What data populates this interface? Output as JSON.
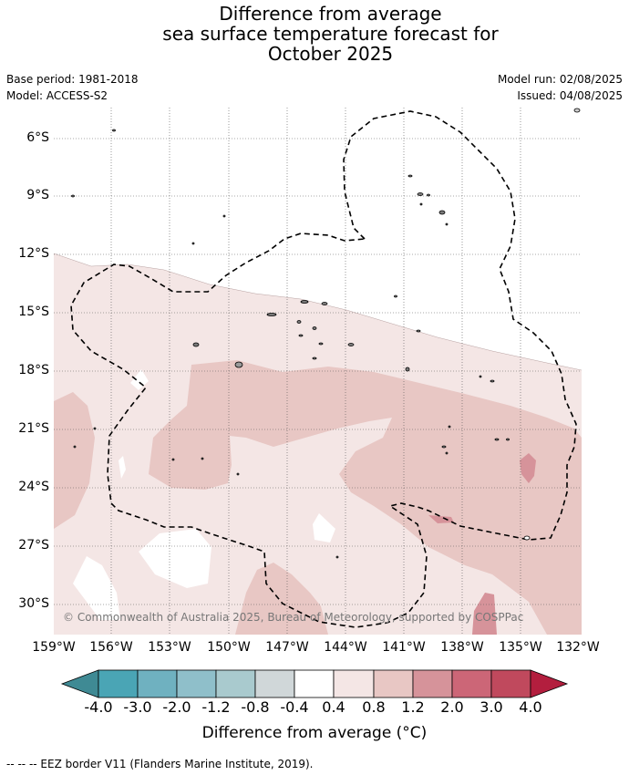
{
  "title": {
    "line1": "Difference from average",
    "line2": "sea surface temperature forecast for",
    "line3": "October 2025"
  },
  "meta": {
    "base_period": "Base period: 1981-2018",
    "model": "Model: ACCESS-S2",
    "model_run": "Model run: 02/08/2025",
    "issued": "Issued: 04/08/2025"
  },
  "copyright": "© Commonwealth of Australia 2025, Bureau of Meteorology, supported by COSPPac",
  "lat_labels": [
    "6°S",
    "9°S",
    "12°S",
    "15°S",
    "18°S",
    "21°S",
    "24°S",
    "27°S",
    "30°S"
  ],
  "lon_labels": [
    "159°W",
    "156°W",
    "153°W",
    "150°W",
    "147°W",
    "144°W",
    "141°W",
    "138°W",
    "135°W",
    "132°W"
  ],
  "colorbar": {
    "title": "Difference from average (°C)",
    "ticks": [
      "-4.0",
      "-3.0",
      "-2.0",
      "-1.2",
      "-0.8",
      "-0.4",
      "0.4",
      "0.8",
      "1.2",
      "2.0",
      "3.0",
      "4.0"
    ],
    "colors": [
      "#3f8a94",
      "#4aa5b5",
      "#6fb1c0",
      "#8fbfca",
      "#a9cace",
      "#d0d7d9",
      "#ffffff",
      "#f4e6e5",
      "#e8c7c4",
      "#d6939a",
      "#cc6677",
      "#c0495d",
      "#b31e3e"
    ]
  },
  "footer": "--  --  -- EEZ border V11 (Flanders Marine Institute, 2019)."
}
